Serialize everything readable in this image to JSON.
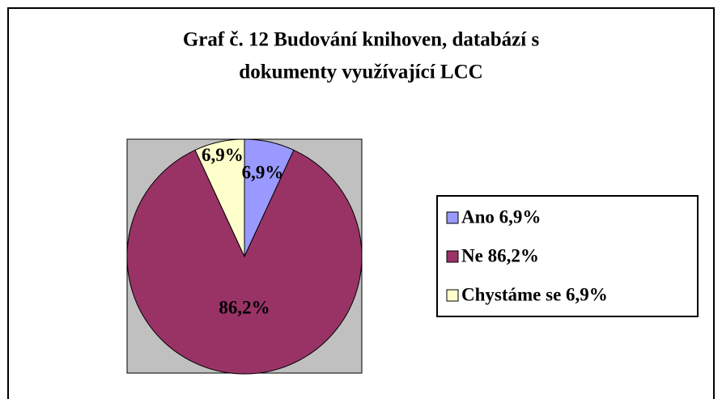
{
  "chart_data": {
    "type": "pie",
    "title": [
      "Graf č. 12 Budování knihoven, databází s",
      "dokumenty využívající LCC"
    ],
    "categories": [
      "Ano 6,9%",
      "Ne 86,2%",
      "Chystáme se 6,9%"
    ],
    "values": [
      6.9,
      86.2,
      6.9
    ],
    "value_labels": [
      "6,9%",
      "86,2%",
      "6,9%"
    ],
    "colors": [
      "#9999ff",
      "#993366",
      "#ffffcc"
    ],
    "legend": "right"
  }
}
